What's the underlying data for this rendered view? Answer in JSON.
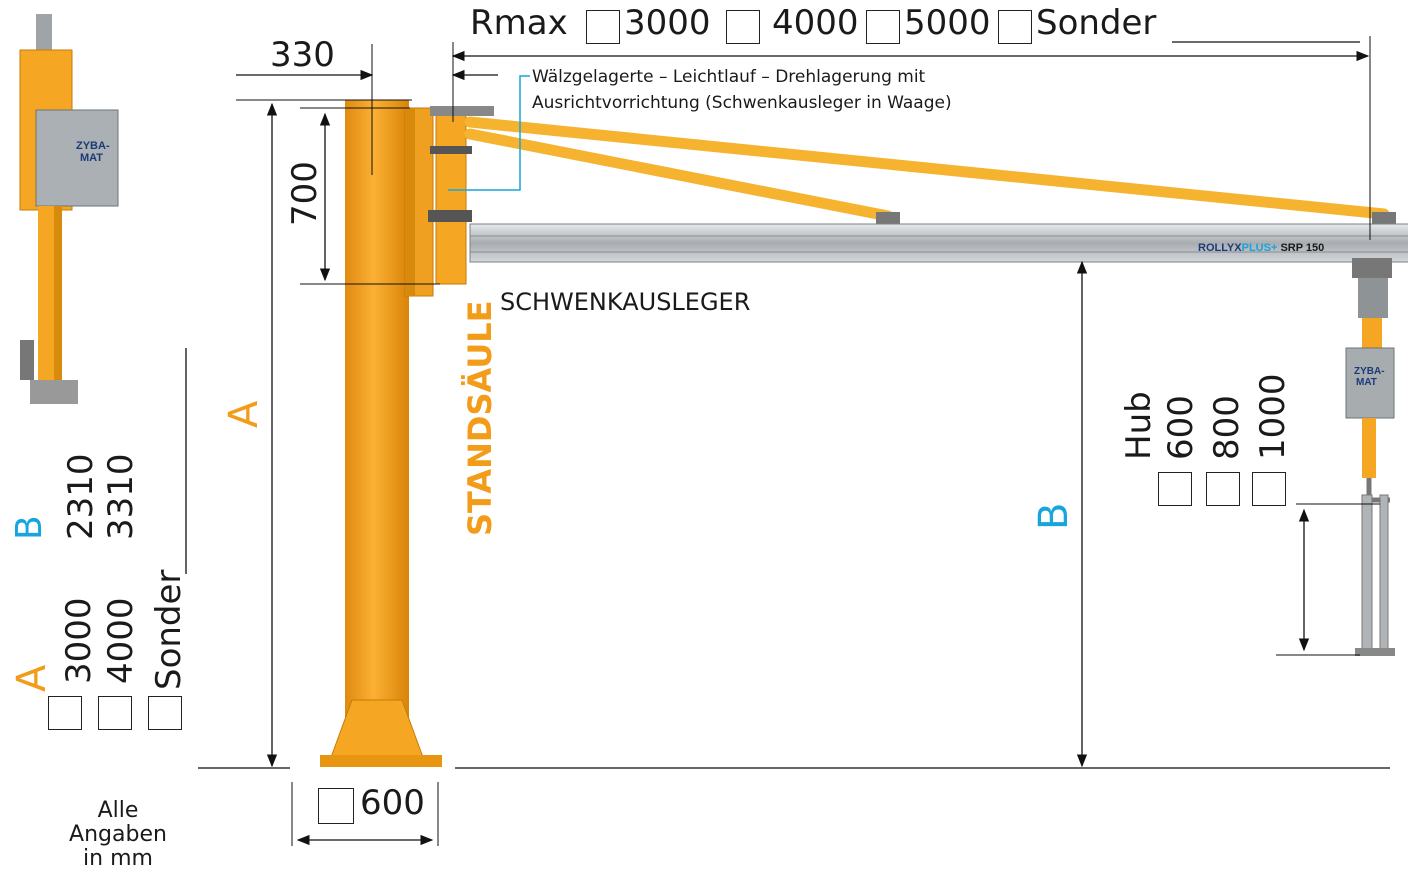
{
  "colors": {
    "crane_orange": "#f5a623",
    "label_orange": "#f39c1a",
    "label_blue": "#16a5dc",
    "rail_silver": "#b9bcbf",
    "hoist_grey": "#9aa0a4"
  },
  "top_option": {
    "title": "Rmax",
    "options": [
      "3000",
      "4000",
      "5000",
      "Sonder"
    ]
  },
  "dims": {
    "offset": "330",
    "height_short": "700",
    "base_option": "600"
  },
  "notes": {
    "bearing_line1": "Wälzgelagerte – Leichtlauf – Drehlagerung mit",
    "bearing_line2": "Ausrichtvorrichtung (Schwenkausleger in Waage)"
  },
  "parts": {
    "column": "STANDSÄULE",
    "boom": "SCHWENKAUSLEGER"
  },
  "rail_label": {
    "brand_a": "ROLLYX",
    "brand_b": "PLUS+",
    "model": "SRP 150"
  },
  "hoist_label": {
    "line1": "ZYBA-",
    "line2": "MAT"
  },
  "a_dim": {
    "letter": "A",
    "options": [
      "3000",
      "4000",
      "Sonder"
    ]
  },
  "b_dim": {
    "letter": "B",
    "options": [
      "2310",
      "3310"
    ]
  },
  "hub": {
    "title": "Hub",
    "options": [
      "600",
      "800",
      "1000"
    ]
  },
  "footnote": {
    "line1": "Alle",
    "line2": "Angaben",
    "line3": "in mm"
  }
}
